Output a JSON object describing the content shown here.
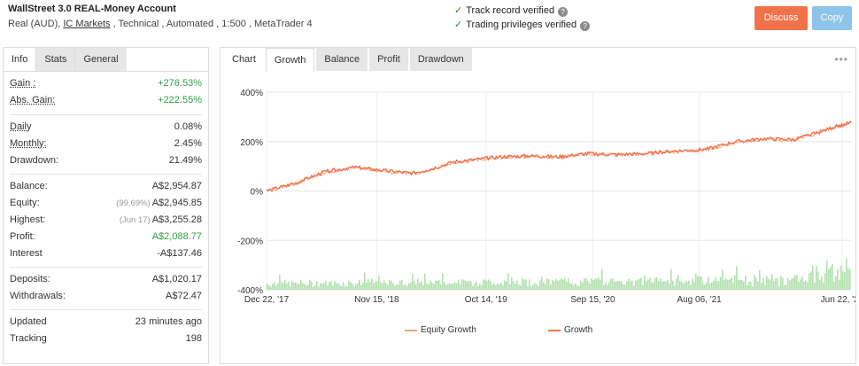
{
  "header": {
    "title": "WallStreet 3.0 REAL-Money Account",
    "sub_prefix": "Real (AUD), ",
    "broker": "IC Markets",
    "sub_suffix": " , Technical , Automated , 1:500 , MetaTrader 4",
    "verified": [
      "Track record verified",
      "Trading privileges verified"
    ],
    "discuss_label": "Discuss",
    "copy_label": "Copy"
  },
  "left_tabs": [
    "Info",
    "Stats",
    "General"
  ],
  "stats": {
    "gain": {
      "label": "Gain :",
      "value": "+276.53%"
    },
    "abs_gain": {
      "label": "Abs. Gain:",
      "value": "+222.55%"
    },
    "daily": {
      "label": "Daily",
      "value": "0.08%"
    },
    "monthly": {
      "label": "Monthly:",
      "value": "2.45%"
    },
    "drawdown": {
      "label": "Drawdown:",
      "value": "21.49%"
    },
    "balance": {
      "label": "Balance:",
      "value": "A$2,954.87"
    },
    "equity": {
      "label": "Equity:",
      "note": "(99.69%)",
      "value": "A$2,945.85"
    },
    "highest": {
      "label": "Highest:",
      "note": "(Jun 17)",
      "value": "A$3,255.28"
    },
    "profit": {
      "label": "Profit:",
      "value": "A$2,088.77"
    },
    "interest": {
      "label": "Interest",
      "value": "-A$137.46"
    },
    "deposits": {
      "label": "Deposits:",
      "value": "A$1,020.17"
    },
    "withdrawals": {
      "label": "Withdrawals:",
      "value": "A$72.47"
    },
    "updated": {
      "label": "Updated",
      "value": "23 minutes ago"
    },
    "tracking": {
      "label": "Tracking",
      "value": "198"
    }
  },
  "right_tabs": [
    "Chart",
    "Growth",
    "Balance",
    "Profit",
    "Drawdown"
  ],
  "more_icon": "ellipsis-icon",
  "colors": {
    "growth": "#f0714a",
    "equity": "#f4a582",
    "volume": "#9fd99a",
    "discuss": "#f0714a",
    "copy": "#8fc3e9"
  },
  "chart_data": {
    "type": "line",
    "title": "",
    "y_ticks": [
      "400%",
      "200%",
      "0%",
      "-200%",
      "-400%"
    ],
    "ylim": [
      -400,
      400
    ],
    "x_ticks": [
      "Dec 22, '17",
      "Nov 15, '18",
      "Oct 14, '19",
      "Sep 15, '20",
      "Aug 06, '21",
      "Jun 22, '22"
    ],
    "x_tick_index": [
      0,
      0.1885,
      0.3754,
      0.5583,
      0.7403,
      0.9848
    ],
    "series": [
      {
        "name": "Equity Growth",
        "x": [
          0,
          0.05,
          0.1,
          0.15,
          0.2,
          0.25,
          0.28,
          0.32,
          0.36,
          0.4,
          0.45,
          0.5,
          0.55,
          0.6,
          0.65,
          0.7,
          0.75,
          0.8,
          0.85,
          0.9,
          0.94,
          0.97,
          1.0
        ],
        "values": [
          0,
          30,
          75,
          95,
          80,
          70,
          85,
          115,
          125,
          135,
          140,
          135,
          150,
          145,
          150,
          160,
          165,
          195,
          210,
          205,
          230,
          255,
          275
        ]
      },
      {
        "name": "Growth",
        "x": [
          0,
          0.05,
          0.1,
          0.15,
          0.2,
          0.25,
          0.28,
          0.32,
          0.36,
          0.4,
          0.45,
          0.5,
          0.55,
          0.6,
          0.65,
          0.7,
          0.75,
          0.8,
          0.85,
          0.9,
          0.94,
          0.97,
          1.0
        ],
        "values": [
          0,
          32,
          78,
          96,
          82,
          72,
          88,
          118,
          128,
          138,
          142,
          138,
          152,
          147,
          152,
          162,
          168,
          198,
          212,
          208,
          233,
          258,
          277
        ]
      }
    ],
    "legend": "bottom-center"
  }
}
